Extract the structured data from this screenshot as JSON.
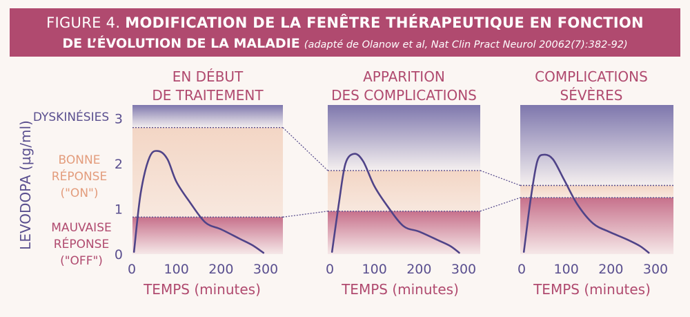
{
  "header": {
    "figure_label": "FIGURE 4.",
    "title_line1": "MODIFICATION DE LA FENÊTRE THÉRAPEUTIQUE EN FONCTION",
    "title_line2": "DE L’ÉVOLUTION DE LA MALADIE",
    "source": "(adapté de Olanow et al, Nat Clin Pract Neurol 20062(7):382-92)"
  },
  "colors": {
    "header_bg": "#b04a6f",
    "text_purple": "#5a4f8f",
    "text_pink": "#b04a6f",
    "text_orange": "#e39c7c",
    "curve": "#4f4388",
    "dyskinesia_band": "#7e77ad",
    "good_band": "#f3d6c5",
    "bad_band": "#c46a86"
  },
  "chart_data": {
    "type": "line",
    "ylabel": "LEVODOPA (µg/ml)",
    "y_ticks": [
      "0",
      "1",
      "2",
      "3"
    ],
    "ylim": [
      0,
      3.3
    ],
    "zone_labels": {
      "dyskinesia": [
        "DYSKINÉSIES"
      ],
      "good": [
        "BONNE",
        "RÉPONSE",
        "(\"ON\")"
      ],
      "bad": [
        "MAUVAISE",
        "RÉPONSE",
        "(\"OFF\")"
      ]
    },
    "panels": [
      {
        "title": [
          "EN DÉBUT",
          "DE TRAITEMENT"
        ],
        "xlabel": "TEMPS (minutes)",
        "x_ticks": [
          "0",
          "100",
          "200",
          "300"
        ],
        "xlim": [
          0,
          330
        ],
        "upper_threshold": 2.8,
        "lower_threshold": 0.82,
        "x": [
          5,
          20,
          40,
          60,
          80,
          100,
          130,
          165,
          200,
          240,
          270,
          295
        ],
        "y": [
          0.05,
          1.35,
          2.15,
          2.28,
          2.1,
          1.6,
          1.15,
          0.7,
          0.55,
          0.35,
          0.2,
          0.03
        ]
      },
      {
        "title": [
          "APPARITION",
          "DES COMPLICATIONS"
        ],
        "xlabel": "TEMPS (minutes)",
        "x_ticks": [
          "0",
          "100",
          "200",
          "300"
        ],
        "xlim": [
          0,
          330
        ],
        "upper_threshold": 1.85,
        "lower_threshold": 0.95,
        "x": [
          5,
          20,
          35,
          55,
          75,
          100,
          130,
          165,
          200,
          240,
          270,
          290
        ],
        "y": [
          0.05,
          1.1,
          2.0,
          2.22,
          2.05,
          1.5,
          1.05,
          0.62,
          0.5,
          0.32,
          0.18,
          0.03
        ]
      },
      {
        "title": [
          "COMPLICATIONS",
          "SÉVÈRES"
        ],
        "xlabel": "TEMPS (minutes)",
        "x_ticks": [
          "0",
          "100",
          "200",
          "300"
        ],
        "xlim": [
          0,
          330
        ],
        "upper_threshold": 1.52,
        "lower_threshold": 1.25,
        "x": [
          5,
          20,
          35,
          50,
          70,
          95,
          125,
          160,
          195,
          235,
          265,
          285
        ],
        "y": [
          0.05,
          1.2,
          2.05,
          2.2,
          2.1,
          1.65,
          1.1,
          0.68,
          0.5,
          0.33,
          0.18,
          0.03
        ]
      }
    ]
  }
}
